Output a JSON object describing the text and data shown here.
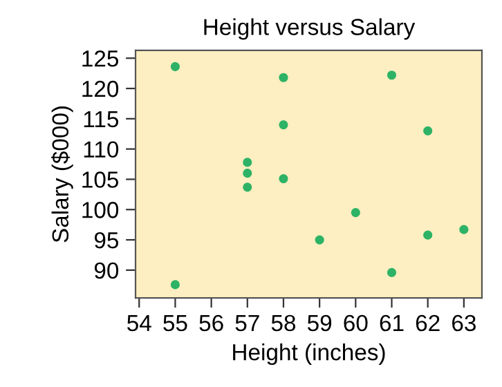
{
  "chart_data": {
    "type": "scatter",
    "title": "Height versus Salary",
    "xlabel": "Height (inches)",
    "ylabel": "Salary ($000)",
    "series": [
      {
        "color": "#2eb366",
        "x": [
          55,
          55,
          57,
          57,
          57,
          58,
          58,
          58,
          59,
          60,
          61,
          61,
          62,
          62,
          63
        ],
        "values": [
          123.6,
          87.6,
          107.8,
          106.0,
          103.7,
          121.8,
          114.0,
          105.1,
          95.0,
          99.5,
          122.2,
          89.6,
          113.0,
          95.8,
          96.7
        ]
      }
    ],
    "xlim": [
      53.9,
      63.5
    ],
    "xticks": [
      54,
      55,
      56,
      57,
      58,
      59,
      60,
      61,
      62,
      63
    ],
    "ylim": [
      85.4,
      126.3
    ],
    "yticks": [
      90,
      95,
      100,
      105,
      110,
      115,
      120,
      125
    ],
    "marker": "circle",
    "grid": false,
    "legend": false
  }
}
